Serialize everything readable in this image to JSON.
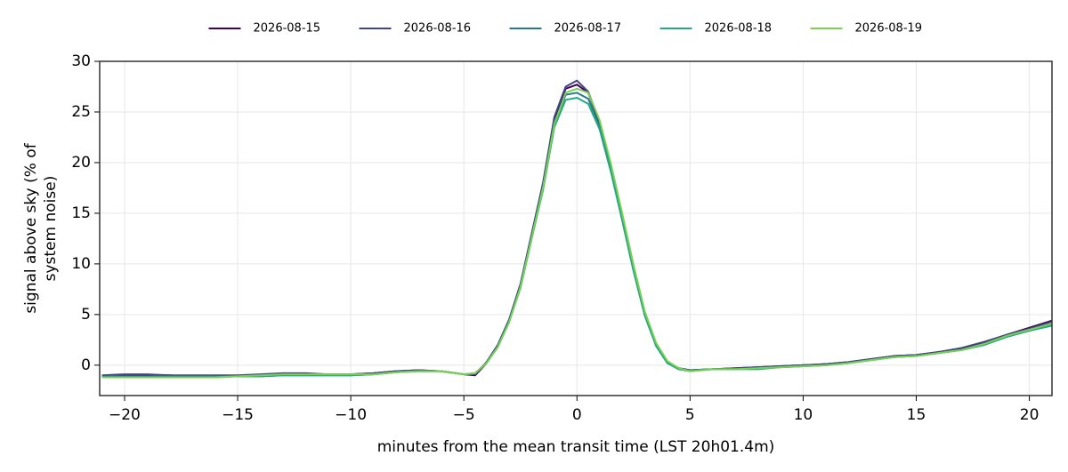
{
  "chart_data": {
    "type": "line",
    "xlabel": "minutes from the mean transit time (LST 20h01.4m)",
    "ylabel": [
      "signal above sky (% of",
      "system noise)"
    ],
    "x": [
      -21,
      -20,
      -19,
      -18,
      -17,
      -16,
      -15,
      -14,
      -13,
      -12,
      -11,
      -10,
      -9,
      -8,
      -7,
      -6,
      -5,
      -4.5,
      -4,
      -3.5,
      -3,
      -2.5,
      -2,
      -1.5,
      -1,
      -0.5,
      0,
      0.5,
      1,
      1.5,
      2,
      2.5,
      3,
      3.5,
      4,
      4.5,
      5,
      6,
      7,
      8,
      9,
      10,
      11,
      12,
      13,
      14,
      15,
      16,
      17,
      18,
      19,
      20,
      21
    ],
    "series": [
      {
        "name": "2026-08-15",
        "color": "#440154",
        "values": [
          -1.1,
          -1.0,
          -1.0,
          -1.0,
          -1.1,
          -1.1,
          -1.1,
          -1.0,
          -0.9,
          -0.9,
          -0.9,
          -0.9,
          -0.8,
          -0.6,
          -0.5,
          -0.6,
          -0.9,
          -1.0,
          0.2,
          1.9,
          4.4,
          7.9,
          12.9,
          17.9,
          24.3,
          27.3,
          27.7,
          26.9,
          23.9,
          19.4,
          14.4,
          9.4,
          5.0,
          2.0,
          0.3,
          -0.3,
          -0.5,
          -0.4,
          -0.3,
          -0.2,
          -0.1,
          0.0,
          0.1,
          0.3,
          0.6,
          0.9,
          1.0,
          1.3,
          1.6,
          2.2,
          3.0,
          3.7,
          4.4
        ]
      },
      {
        "name": "2026-08-16",
        "color": "#414487",
        "values": [
          -1.0,
          -0.9,
          -0.9,
          -1.0,
          -1.0,
          -1.0,
          -1.0,
          -0.9,
          -0.8,
          -0.8,
          -0.9,
          -0.9,
          -0.8,
          -0.6,
          -0.5,
          -0.6,
          -0.9,
          -0.9,
          0.3,
          2.0,
          4.5,
          8.0,
          13.0,
          18.0,
          24.5,
          27.5,
          28.1,
          27.0,
          24.0,
          19.5,
          14.5,
          9.5,
          5.0,
          2.0,
          0.3,
          -0.3,
          -0.5,
          -0.4,
          -0.3,
          -0.2,
          -0.1,
          0.0,
          0.1,
          0.3,
          0.6,
          0.9,
          1.0,
          1.3,
          1.7,
          2.3,
          3.0,
          3.6,
          4.3
        ]
      },
      {
        "name": "2026-08-17",
        "color": "#2a788e",
        "values": [
          -1.1,
          -1.1,
          -1.1,
          -1.1,
          -1.1,
          -1.1,
          -1.1,
          -1.1,
          -1.0,
          -1.0,
          -1.0,
          -1.0,
          -0.9,
          -0.7,
          -0.6,
          -0.6,
          -0.9,
          -0.8,
          0.2,
          1.8,
          4.3,
          7.7,
          12.7,
          17.6,
          23.9,
          26.7,
          26.9,
          26.3,
          23.6,
          19.3,
          14.4,
          9.4,
          4.9,
          1.9,
          0.2,
          -0.4,
          -0.5,
          -0.4,
          -0.4,
          -0.3,
          -0.2,
          -0.1,
          0.0,
          0.2,
          0.5,
          0.8,
          0.9,
          1.2,
          1.5,
          2.0,
          2.8,
          3.4,
          4.0
        ]
      },
      {
        "name": "2026-08-18",
        "color": "#22a884",
        "values": [
          -1.2,
          -1.2,
          -1.2,
          -1.2,
          -1.2,
          -1.2,
          -1.1,
          -1.1,
          -1.0,
          -1.0,
          -1.0,
          -1.0,
          -0.9,
          -0.7,
          -0.6,
          -0.6,
          -0.9,
          -0.8,
          0.2,
          1.8,
          4.3,
          7.6,
          12.5,
          17.3,
          23.5,
          26.2,
          26.4,
          25.8,
          23.3,
          19.1,
          14.3,
          9.3,
          4.9,
          1.9,
          0.2,
          -0.4,
          -0.6,
          -0.4,
          -0.4,
          -0.4,
          -0.2,
          -0.1,
          0.0,
          0.2,
          0.5,
          0.8,
          0.9,
          1.2,
          1.5,
          2.0,
          2.8,
          3.4,
          3.9
        ]
      },
      {
        "name": "2026-08-19",
        "color": "#7ad151",
        "values": [
          -1.2,
          -1.2,
          -1.2,
          -1.2,
          -1.2,
          -1.2,
          -1.1,
          -1.0,
          -0.9,
          -0.9,
          -0.9,
          -0.9,
          -0.9,
          -0.7,
          -0.6,
          -0.6,
          -0.9,
          -0.8,
          0.2,
          1.8,
          4.2,
          7.7,
          12.6,
          17.5,
          23.8,
          26.9,
          27.3,
          26.9,
          24.2,
          19.9,
          15.0,
          9.9,
          5.3,
          2.2,
          0.4,
          -0.3,
          -0.6,
          -0.4,
          -0.4,
          -0.3,
          -0.2,
          -0.1,
          0.0,
          0.2,
          0.5,
          0.8,
          0.9,
          1.2,
          1.5,
          2.1,
          2.9,
          3.5,
          4.1
        ]
      }
    ],
    "xlim": [
      -21.1,
      21.0
    ],
    "ylim": [
      -3,
      30
    ],
    "xticks": [
      {
        "value": -20,
        "label": "−20"
      },
      {
        "value": -15,
        "label": "−15"
      },
      {
        "value": -10,
        "label": "−10"
      },
      {
        "value": -5,
        "label": "−5"
      },
      0,
      5,
      10,
      15,
      20
    ],
    "yticks": [
      0,
      5,
      10,
      15,
      20,
      25,
      30
    ],
    "grid": true,
    "legend": "top"
  }
}
